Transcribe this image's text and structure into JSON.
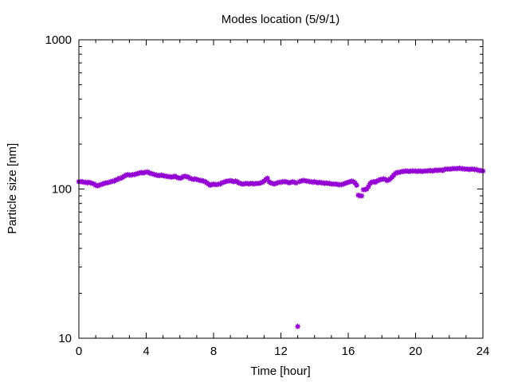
{
  "chart_data": {
    "type": "scatter",
    "title": "Modes location (5/9/1)",
    "xlabel": "Time [hour]",
    "ylabel": "Particle size [nm]",
    "xlim": [
      0,
      24
    ],
    "ylim": [
      10,
      1000
    ],
    "yscale": "log",
    "x_ticks": [
      0,
      4,
      8,
      12,
      16,
      20,
      24
    ],
    "x_tick_labels": [
      "0",
      "4",
      "8",
      "12",
      "16",
      "20",
      "24"
    ],
    "y_ticks": [
      10,
      100,
      1000
    ],
    "y_tick_labels": [
      "10",
      "100",
      "1000"
    ],
    "grid": false,
    "marker_color": "#9400d3",
    "series": [
      {
        "points": [
          [
            0.0,
            112
          ],
          [
            0.1,
            112
          ],
          [
            0.2,
            112
          ],
          [
            0.3,
            111
          ],
          [
            0.4,
            111
          ],
          [
            0.5,
            110
          ],
          [
            0.6,
            111
          ],
          [
            0.7,
            110
          ],
          [
            0.8,
            109
          ],
          [
            0.9,
            108
          ],
          [
            1.0,
            106
          ],
          [
            1.1,
            105
          ],
          [
            1.2,
            106
          ],
          [
            1.3,
            107
          ],
          [
            1.4,
            108
          ],
          [
            1.5,
            109
          ],
          [
            1.6,
            110
          ],
          [
            1.7,
            110
          ],
          [
            1.8,
            111
          ],
          [
            1.9,
            112
          ],
          [
            2.0,
            113
          ],
          [
            2.1,
            113
          ],
          [
            2.2,
            115
          ],
          [
            2.3,
            116
          ],
          [
            2.4,
            118
          ],
          [
            2.5,
            118
          ],
          [
            2.6,
            120
          ],
          [
            2.7,
            122
          ],
          [
            2.8,
            124
          ],
          [
            2.9,
            125
          ],
          [
            3.0,
            124
          ],
          [
            3.1,
            124
          ],
          [
            3.2,
            125
          ],
          [
            3.3,
            125
          ],
          [
            3.4,
            126
          ],
          [
            3.5,
            127
          ],
          [
            3.6,
            128
          ],
          [
            3.7,
            129
          ],
          [
            3.8,
            128
          ],
          [
            3.9,
            129
          ],
          [
            4.0,
            130
          ],
          [
            4.1,
            130
          ],
          [
            4.2,
            128
          ],
          [
            4.3,
            127
          ],
          [
            4.4,
            126
          ],
          [
            4.5,
            125
          ],
          [
            4.6,
            124
          ],
          [
            4.7,
            123
          ],
          [
            4.8,
            123
          ],
          [
            4.9,
            124
          ],
          [
            5.0,
            123
          ],
          [
            5.1,
            122
          ],
          [
            5.2,
            122
          ],
          [
            5.3,
            121
          ],
          [
            5.4,
            121
          ],
          [
            5.5,
            120
          ],
          [
            5.6,
            121
          ],
          [
            5.7,
            122
          ],
          [
            5.8,
            120
          ],
          [
            5.9,
            119
          ],
          [
            6.0,
            118
          ],
          [
            6.1,
            119
          ],
          [
            6.2,
            121
          ],
          [
            6.3,
            122
          ],
          [
            6.4,
            121
          ],
          [
            6.5,
            120
          ],
          [
            6.6,
            118
          ],
          [
            6.7,
            117
          ],
          [
            6.8,
            116
          ],
          [
            6.9,
            117
          ],
          [
            7.0,
            116
          ],
          [
            7.1,
            115
          ],
          [
            7.2,
            114
          ],
          [
            7.3,
            114
          ],
          [
            7.4,
            113
          ],
          [
            7.5,
            112
          ],
          [
            7.6,
            110
          ],
          [
            7.7,
            108
          ],
          [
            7.8,
            106
          ],
          [
            7.9,
            107
          ],
          [
            8.0,
            108
          ],
          [
            8.1,
            107
          ],
          [
            8.2,
            107
          ],
          [
            8.3,
            108
          ],
          [
            8.4,
            108
          ],
          [
            8.5,
            110
          ],
          [
            8.6,
            111
          ],
          [
            8.7,
            112
          ],
          [
            8.8,
            113
          ],
          [
            8.9,
            113
          ],
          [
            9.0,
            114
          ],
          [
            9.1,
            113
          ],
          [
            9.2,
            112
          ],
          [
            9.3,
            113
          ],
          [
            9.4,
            112
          ],
          [
            9.5,
            110
          ],
          [
            9.6,
            109
          ],
          [
            9.7,
            108
          ],
          [
            9.8,
            108
          ],
          [
            9.9,
            109
          ],
          [
            10.0,
            109
          ],
          [
            10.1,
            108
          ],
          [
            10.2,
            109
          ],
          [
            10.3,
            109
          ],
          [
            10.4,
            108
          ],
          [
            10.5,
            109
          ],
          [
            10.6,
            109
          ],
          [
            10.7,
            109
          ],
          [
            10.8,
            110
          ],
          [
            10.9,
            111
          ],
          [
            11.0,
            113
          ],
          [
            11.1,
            116
          ],
          [
            11.2,
            118
          ],
          [
            11.3,
            112
          ],
          [
            11.4,
            110
          ],
          [
            11.5,
            109
          ],
          [
            11.6,
            108
          ],
          [
            11.7,
            109
          ],
          [
            11.8,
            110
          ],
          [
            11.9,
            111
          ],
          [
            12.0,
            111
          ],
          [
            12.1,
            112
          ],
          [
            12.2,
            112
          ],
          [
            12.3,
            112
          ],
          [
            12.4,
            111
          ],
          [
            12.5,
            110
          ],
          [
            12.6,
            111
          ],
          [
            12.7,
            112
          ],
          [
            12.8,
            111
          ],
          [
            12.9,
            110
          ],
          [
            13.0,
            12
          ],
          [
            13.1,
            112
          ],
          [
            13.2,
            113
          ],
          [
            13.3,
            114
          ],
          [
            13.4,
            114
          ],
          [
            13.5,
            113
          ],
          [
            13.6,
            113
          ],
          [
            13.7,
            112
          ],
          [
            13.8,
            112
          ],
          [
            13.9,
            111
          ],
          [
            14.0,
            112
          ],
          [
            14.1,
            111
          ],
          [
            14.2,
            110
          ],
          [
            14.3,
            111
          ],
          [
            14.4,
            110
          ],
          [
            14.5,
            110
          ],
          [
            14.6,
            109
          ],
          [
            14.7,
            110
          ],
          [
            14.8,
            109
          ],
          [
            14.9,
            109
          ],
          [
            15.0,
            108
          ],
          [
            15.1,
            108
          ],
          [
            15.2,
            108
          ],
          [
            15.3,
            108
          ],
          [
            15.4,
            107
          ],
          [
            15.5,
            107
          ],
          [
            15.6,
            107
          ],
          [
            15.7,
            108
          ],
          [
            15.8,
            109
          ],
          [
            15.9,
            110
          ],
          [
            16.0,
            111
          ],
          [
            16.1,
            112
          ],
          [
            16.2,
            113
          ],
          [
            16.3,
            112
          ],
          [
            16.4,
            110
          ],
          [
            16.5,
            106
          ],
          [
            16.6,
            91
          ],
          [
            16.7,
            90
          ],
          [
            16.8,
            90
          ],
          [
            16.9,
            99
          ],
          [
            17.0,
            99
          ],
          [
            17.1,
            100
          ],
          [
            17.2,
            104
          ],
          [
            17.3,
            109
          ],
          [
            17.4,
            111
          ],
          [
            17.5,
            112
          ],
          [
            17.6,
            111
          ],
          [
            17.7,
            113
          ],
          [
            17.8,
            114
          ],
          [
            17.9,
            116
          ],
          [
            18.0,
            116
          ],
          [
            18.1,
            117
          ],
          [
            18.2,
            116
          ],
          [
            18.3,
            114
          ],
          [
            18.4,
            115
          ],
          [
            18.5,
            117
          ],
          [
            18.6,
            120
          ],
          [
            18.7,
            124
          ],
          [
            18.8,
            127
          ],
          [
            18.9,
            129
          ],
          [
            19.0,
            129
          ],
          [
            19.1,
            130
          ],
          [
            19.2,
            131
          ],
          [
            19.3,
            131
          ],
          [
            19.4,
            132
          ],
          [
            19.5,
            132
          ],
          [
            19.6,
            131
          ],
          [
            19.7,
            132
          ],
          [
            19.8,
            132
          ],
          [
            19.9,
            132
          ],
          [
            20.0,
            132
          ],
          [
            20.1,
            131
          ],
          [
            20.2,
            132
          ],
          [
            20.3,
            132
          ],
          [
            20.4,
            131
          ],
          [
            20.5,
            132
          ],
          [
            20.6,
            132
          ],
          [
            20.7,
            132
          ],
          [
            20.8,
            133
          ],
          [
            20.9,
            133
          ],
          [
            21.0,
            132
          ],
          [
            21.1,
            133
          ],
          [
            21.2,
            134
          ],
          [
            21.3,
            133
          ],
          [
            21.4,
            134
          ],
          [
            21.5,
            134
          ],
          [
            21.6,
            133
          ],
          [
            21.7,
            135
          ],
          [
            21.8,
            136
          ],
          [
            21.9,
            136
          ],
          [
            22.0,
            136
          ],
          [
            22.1,
            136
          ],
          [
            22.2,
            137
          ],
          [
            22.3,
            137
          ],
          [
            22.4,
            137
          ],
          [
            22.5,
            137
          ],
          [
            22.6,
            138
          ],
          [
            22.7,
            137
          ],
          [
            22.8,
            137
          ],
          [
            22.9,
            136
          ],
          [
            23.0,
            136
          ],
          [
            23.1,
            136
          ],
          [
            23.2,
            135
          ],
          [
            23.3,
            136
          ],
          [
            23.4,
            136
          ],
          [
            23.5,
            135
          ],
          [
            23.6,
            135
          ],
          [
            23.7,
            134
          ],
          [
            23.8,
            133
          ],
          [
            23.9,
            133
          ],
          [
            24.0,
            132
          ]
        ]
      }
    ]
  }
}
